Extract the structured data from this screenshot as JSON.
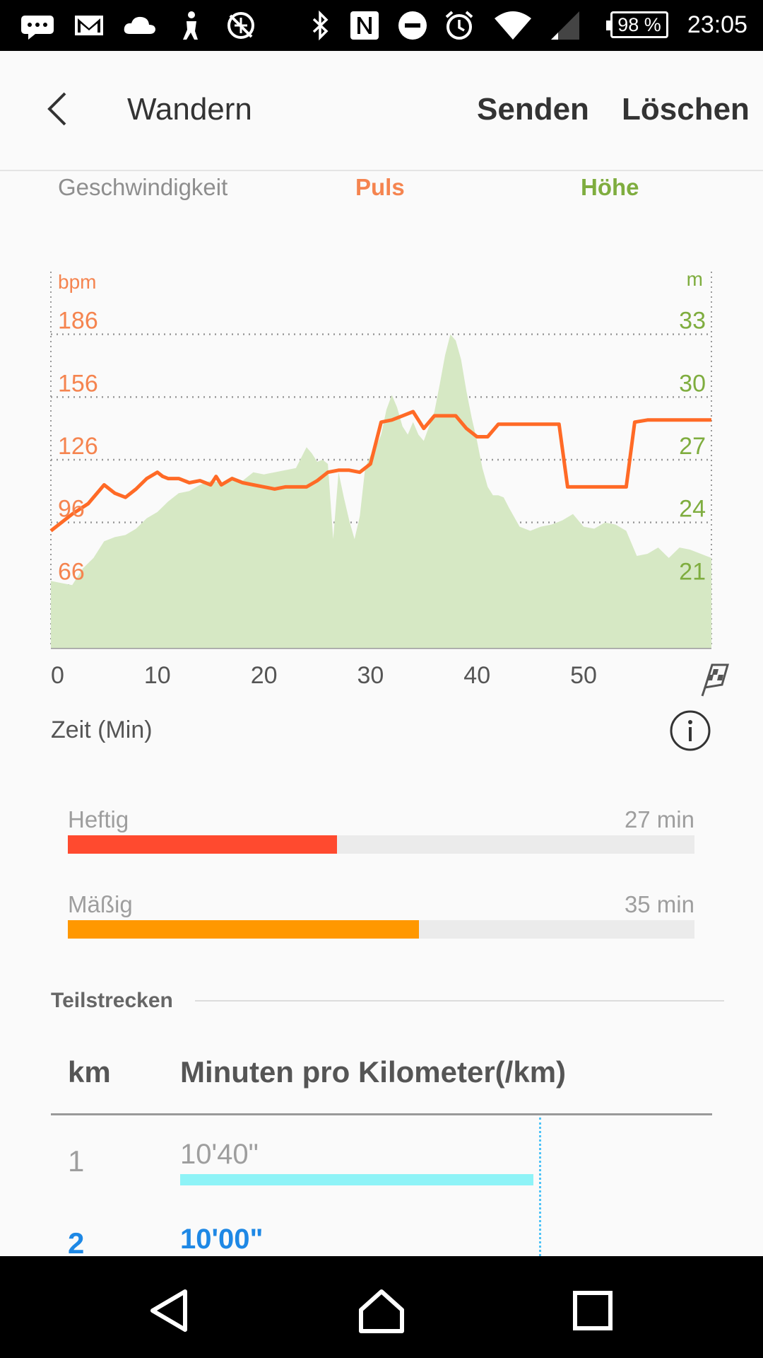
{
  "status_bar": {
    "battery": "98 %",
    "time": "23:05",
    "icons": [
      "message-icon",
      "gmail-icon",
      "cloud-icon",
      "figure-icon",
      "no-location-icon",
      "bluetooth-icon",
      "nfc-icon",
      "do-not-disturb-icon",
      "alarm-icon",
      "wifi-icon",
      "signal-icon",
      "battery-icon"
    ]
  },
  "header": {
    "title": "Wandern",
    "send_label": "Senden",
    "delete_label": "Löschen"
  },
  "tabs": {
    "speed": "Geschwindigkeit",
    "pulse": "Puls",
    "altitude": "Höhe"
  },
  "chart_data": {
    "type": "line",
    "left_unit": "bpm",
    "right_unit": "m",
    "xlabel": "Zeit (Min)",
    "x_ticks": [
      "0",
      "10",
      "20",
      "30",
      "40",
      "50"
    ],
    "y_left_ticks": [
      "186",
      "156",
      "126",
      "96",
      "66"
    ],
    "y_right_ticks": [
      "33",
      "30",
      "27",
      "24",
      "21"
    ],
    "xlim": [
      0,
      62
    ],
    "ylim_left": [
      36,
      216
    ],
    "ylim_right": [
      18,
      36
    ],
    "grid": true,
    "colors": {
      "pulse": "#ff6a26",
      "altitude": "#d6e8c4",
      "pulse_label": "#f5844f",
      "altitude_label": "#7fad3f"
    },
    "series": [
      {
        "name": "Puls",
        "axis": "left",
        "x": [
          0,
          2,
          3.5,
          5,
          6,
          7,
          8,
          9,
          10,
          10.5,
          11,
          12,
          13,
          14,
          15,
          15.5,
          16,
          17,
          18,
          19,
          20,
          21,
          22,
          23,
          24,
          25,
          26,
          27,
          28,
          29,
          30,
          31,
          32,
          33,
          34,
          35,
          36,
          37,
          38,
          39,
          40,
          41,
          42,
          43,
          44,
          45,
          46,
          47,
          47.7,
          48.5,
          49,
          50,
          51,
          52,
          53,
          54,
          54.8,
          56,
          58,
          60,
          62
        ],
        "values": [
          92,
          100,
          105,
          114,
          110,
          108,
          112,
          117,
          120,
          118,
          117,
          117,
          115,
          116,
          114,
          118,
          114,
          117,
          115,
          114,
          113,
          112,
          113,
          113,
          113,
          116,
          120,
          121,
          121,
          120,
          124,
          144,
          145,
          147,
          149,
          141,
          147,
          147,
          147,
          141,
          137,
          137,
          143,
          143,
          143,
          143,
          143,
          143,
          143,
          113,
          113,
          113,
          113,
          113,
          113,
          113,
          144,
          145,
          145,
          145,
          145
        ]
      },
      {
        "name": "Höhe",
        "axis": "right",
        "x": [
          0,
          1,
          2,
          3,
          4,
          5,
          6,
          7,
          8,
          9,
          10,
          11,
          12,
          13,
          14,
          15,
          16,
          17,
          18,
          19,
          20,
          21,
          22,
          23,
          24,
          24.5,
          25,
          25.5,
          26,
          26.5,
          27,
          27.5,
          28,
          28.5,
          29,
          29.5,
          30,
          30.5,
          31,
          31.5,
          32,
          32.5,
          33,
          33.5,
          34,
          34.5,
          35,
          35.5,
          36,
          36.5,
          37,
          37.5,
          38,
          38.5,
          39,
          39.5,
          40,
          40.5,
          41,
          41.5,
          42,
          42.5,
          43,
          44,
          45,
          46,
          47,
          48,
          49,
          50,
          51,
          52,
          53,
          54,
          55,
          56,
          57,
          58,
          59,
          60,
          61,
          62
        ],
        "values": [
          21.2,
          21.1,
          21.0,
          21.8,
          22.3,
          23.1,
          23.3,
          23.4,
          23.7,
          24.2,
          24.5,
          25.0,
          25.4,
          25.5,
          25.8,
          26.0,
          25.9,
          26.2,
          26.0,
          26.4,
          26.3,
          26.4,
          26.5,
          26.6,
          27.6,
          27.3,
          26.9,
          27.0,
          26.8,
          23.2,
          26.4,
          25.2,
          24.1,
          23.2,
          24.3,
          26.6,
          27.2,
          27.6,
          28.2,
          29.4,
          30.1,
          29.5,
          28.6,
          28.2,
          28.8,
          28.2,
          27.9,
          28.6,
          29.3,
          30.6,
          32.0,
          33.0,
          32.7,
          31.8,
          30.3,
          29.0,
          27.9,
          26.6,
          25.7,
          25.3,
          25.3,
          25.2,
          24.7,
          23.8,
          23.6,
          23.8,
          23.9,
          24.1,
          24.4,
          23.8,
          23.7,
          24.0,
          23.9,
          23.6,
          22.4,
          22.5,
          22.8,
          22.3,
          22.8,
          22.7,
          22.5,
          22.3
        ]
      }
    ]
  },
  "intensity": {
    "info_icon": "info-icon",
    "items": [
      {
        "label": "Heftig",
        "value": "27 min",
        "fraction": 0.43,
        "color": "#ff4a2f"
      },
      {
        "label": "Mäßig",
        "value": "35 min",
        "fraction": 0.56,
        "color": "#ff9800"
      }
    ]
  },
  "splits": {
    "title": "Teilstrecken",
    "col_km": "km",
    "col_pace": "Minuten pro Kilometer(/km)",
    "rows": [
      {
        "km": "1",
        "pace": "10'40\"",
        "bar_fraction": 1.0,
        "color": "#9e9e9e"
      },
      {
        "km": "2",
        "pace": "10'00\"",
        "color": "#1e88e5"
      }
    ]
  },
  "nav_bar": {
    "icons": [
      "back-icon",
      "home-icon",
      "recents-icon"
    ]
  }
}
